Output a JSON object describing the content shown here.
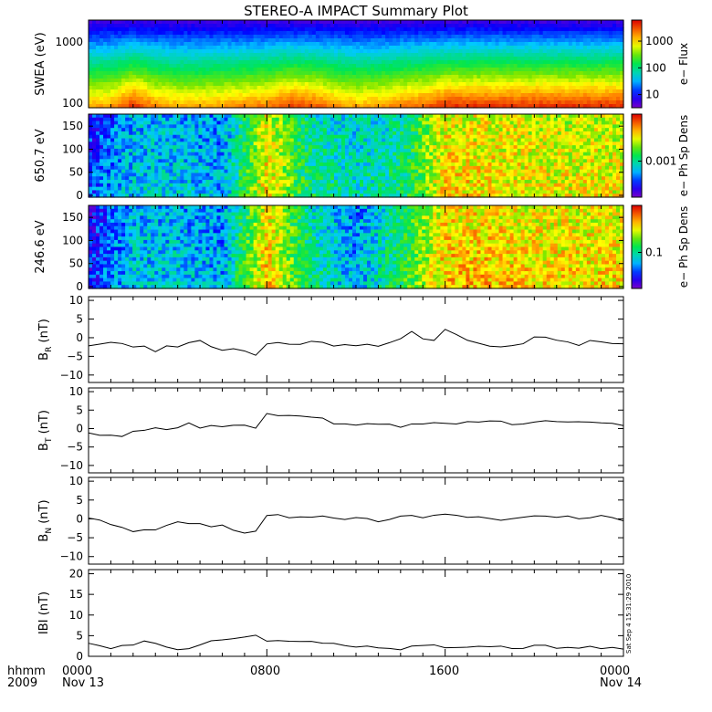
{
  "title": "STEREO-A IMPACT Summary Plot",
  "stamp": "Sat Sep  4 15:31:29 2010",
  "footer": {
    "left_top": "hhmm",
    "left_bottom": "2009",
    "ticks": [
      "0000",
      "0800",
      "1600",
      "0000"
    ],
    "start_date": "Nov 13",
    "end_date": "Nov 14"
  },
  "colors": {
    "line": "#000000",
    "background": "#ffffff"
  },
  "chart_data": [
    {
      "type": "heatmap",
      "ylabel": "SWEA (eV)",
      "yscale": "log",
      "yticks": [
        "1000",
        "100"
      ],
      "colorbar_label": "e− Flux",
      "colorbar_ticks": [
        "1000",
        "100",
        "10"
      ],
      "colorbar_scale": "log",
      "x_hours": [
        0,
        1,
        2,
        3,
        4,
        5,
        6,
        7,
        8,
        9,
        10,
        11,
        12,
        13,
        14,
        15,
        16,
        17,
        18,
        19,
        20,
        21,
        22,
        23,
        24
      ],
      "rows_low_to_high_energy": [
        "~100 eV",
        "~300 eV",
        "~1000 eV",
        "~2000 eV"
      ],
      "flux_level_profile": [
        0.72,
        0.74,
        0.86,
        0.76,
        0.72,
        0.72,
        0.74,
        0.76,
        0.78,
        0.84,
        0.82,
        0.76,
        0.72,
        0.74,
        0.78,
        0.8,
        0.86,
        0.86,
        0.86,
        0.86,
        0.86,
        0.86,
        0.86,
        0.86,
        0.86
      ]
    },
    {
      "type": "heatmap",
      "ylabel": "650.7 eV",
      "ylim": [
        0,
        180
      ],
      "yticks": [
        "150",
        "100",
        "50",
        "0"
      ],
      "colorbar_label": "e− Ph Sp Dens",
      "colorbar_ticks": [
        "0.001"
      ],
      "colorbar_scale": "log",
      "x_hours": [
        0,
        2,
        4,
        6,
        8,
        10,
        12,
        14,
        16,
        18,
        20,
        22,
        24
      ],
      "level_profile": [
        0.3,
        0.45,
        0.45,
        0.4,
        0.85,
        0.55,
        0.5,
        0.55,
        0.85,
        0.85,
        0.82,
        0.82,
        0.82
      ]
    },
    {
      "type": "heatmap",
      "ylabel": "246.6 eV",
      "ylim": [
        0,
        180
      ],
      "yticks": [
        "150",
        "100",
        "50",
        "0"
      ],
      "colorbar_label": "e− Ph Sp Dens",
      "colorbar_ticks": [
        "0.1"
      ],
      "colorbar_scale": "log",
      "x_hours": [
        0,
        2,
        4,
        6,
        8,
        10,
        12,
        14,
        16,
        18,
        20,
        22,
        24
      ],
      "level_profile": [
        0.25,
        0.45,
        0.45,
        0.4,
        0.88,
        0.55,
        0.4,
        0.6,
        0.88,
        0.88,
        0.85,
        0.85,
        0.85
      ]
    },
    {
      "type": "line",
      "ylabel": "B_R (nT)",
      "ylabel_main": "B",
      "ylabel_sub": "R",
      "ylabel_unit": "(nT)",
      "ylim": [
        -12,
        11
      ],
      "yticks": [
        "10",
        "5",
        "0",
        "−5",
        "−10"
      ],
      "ytick_values": [
        10,
        5,
        0,
        -5,
        -10
      ],
      "x": [
        0,
        0.5,
        1,
        1.5,
        2,
        2.5,
        3,
        3.5,
        4,
        4.5,
        5,
        5.5,
        6,
        6.5,
        7,
        7.5,
        8,
        8.5,
        9,
        9.5,
        10,
        10.5,
        11,
        11.5,
        12,
        12.5,
        13,
        13.5,
        14,
        14.5,
        15,
        15.5,
        16,
        16.5,
        17,
        17.5,
        18,
        18.5,
        19,
        19.5,
        20,
        20.5,
        21,
        21.5,
        22,
        22.5,
        23,
        23.5,
        24
      ],
      "y": [
        -2,
        -1.5,
        -1.2,
        -1.5,
        -2.5,
        -2,
        -3.5,
        -2,
        -2.5,
        -1.5,
        -1,
        -2.5,
        -3.5,
        -3,
        -3.5,
        -4.5,
        -1.5,
        -1.5,
        -2,
        -1.5,
        -1,
        -1.5,
        -2.5,
        -2,
        -2,
        -1.5,
        -2.5,
        -1.5,
        -0.5,
        1.5,
        -0.5,
        -1,
        2,
        1,
        -0.5,
        -1.5,
        -2.5,
        -2.5,
        -2,
        -1.5,
        0,
        0.3,
        -0.5,
        -1,
        -2,
        -0.5,
        -1,
        -1.5,
        -1.5
      ]
    },
    {
      "type": "line",
      "ylabel": "B_T (nT)",
      "ylabel_main": "B",
      "ylabel_sub": "T",
      "ylabel_unit": "(nT)",
      "ylim": [
        -12,
        11
      ],
      "yticks": [
        "10",
        "5",
        "0",
        "−5",
        "−10"
      ],
      "ytick_values": [
        10,
        5,
        0,
        -5,
        -10
      ],
      "x": [
        0,
        0.5,
        1,
        1.5,
        2,
        2.5,
        3,
        3.5,
        4,
        4.5,
        5,
        5.5,
        6,
        6.5,
        7,
        7.5,
        8,
        8.5,
        9,
        9.5,
        10,
        10.5,
        11,
        11.5,
        12,
        12.5,
        13,
        13.5,
        14,
        14.5,
        15,
        15.5,
        16,
        16.5,
        17,
        17.5,
        18,
        18.5,
        19,
        19.5,
        20,
        20.5,
        21,
        21.5,
        22,
        22.5,
        23,
        23.5,
        24
      ],
      "y": [
        -1,
        -2,
        -1.5,
        -2,
        -1,
        -0.5,
        0,
        -0.5,
        0.5,
        1.5,
        0,
        1,
        0.5,
        0.8,
        1,
        0,
        3.8,
        3.5,
        3.5,
        3.2,
        3,
        2.8,
        1.5,
        1.5,
        1,
        1.5,
        1,
        1.5,
        0.5,
        1.5,
        1,
        1.5,
        1.5,
        1.5,
        2,
        1.8,
        2,
        2,
        1,
        1.5,
        2,
        2.3,
        2,
        1.8,
        2,
        1.5,
        1.8,
        1.5,
        1
      ]
    },
    {
      "type": "line",
      "ylabel": "B_N (nT)",
      "ylabel_main": "B",
      "ylabel_sub": "N",
      "ylabel_unit": "(nT)",
      "ylim": [
        -12,
        11
      ],
      "yticks": [
        "10",
        "5",
        "0",
        "−5",
        "−10"
      ],
      "ytick_values": [
        10,
        5,
        0,
        -5,
        -10
      ],
      "x": [
        0,
        0.5,
        1,
        1.5,
        2,
        2.5,
        3,
        3.5,
        4,
        4.5,
        5,
        5.5,
        6,
        6.5,
        7,
        7.5,
        8,
        8.5,
        9,
        9.5,
        10,
        10.5,
        11,
        11.5,
        12,
        12.5,
        13,
        13.5,
        14,
        14.5,
        15,
        15.5,
        16,
        16.5,
        17,
        17.5,
        18,
        18.5,
        19,
        19.5,
        20,
        20.5,
        21,
        21.5,
        22,
        22.5,
        23,
        23.5,
        24
      ],
      "y": [
        0,
        -0.5,
        -1.5,
        -2,
        -3.5,
        -3,
        -3,
        -2,
        -0.5,
        -1,
        -1.5,
        -2,
        -1.5,
        -3,
        -3.5,
        -3,
        1,
        1,
        0.5,
        0.5,
        0.5,
        0.5,
        0.5,
        0,
        0.5,
        0,
        -0.5,
        0,
        0.5,
        1,
        0.5,
        1,
        1.5,
        1,
        0.5,
        0.5,
        0,
        -0.5,
        0,
        0.5,
        1,
        1,
        0.5,
        0.8,
        0,
        0.5,
        0.8,
        0.5,
        -0.5
      ]
    },
    {
      "type": "line",
      "ylabel": "|B| (nT)",
      "ylabel_main": "IBI",
      "ylabel_sub": "",
      "ylabel_unit": "(nT)",
      "ylim": [
        0,
        21
      ],
      "yticks": [
        "20",
        "15",
        "10",
        "5",
        "0"
      ],
      "ytick_values": [
        20,
        15,
        10,
        5,
        0
      ],
      "x": [
        0,
        0.5,
        1,
        1.5,
        2,
        2.5,
        3,
        3.5,
        4,
        4.5,
        5,
        5.5,
        6,
        6.5,
        7,
        7.5,
        8,
        8.5,
        9,
        9.5,
        10,
        10.5,
        11,
        11.5,
        12,
        12.5,
        13,
        13.5,
        14,
        14.5,
        15,
        15.5,
        16,
        16.5,
        17,
        17.5,
        18,
        18.5,
        19,
        19.5,
        20,
        20.5,
        21,
        21.5,
        22,
        22.5,
        23,
        23.5,
        24
      ],
      "y": [
        3,
        2.5,
        2,
        2.5,
        3,
        4,
        3,
        2.5,
        1.5,
        2,
        2.5,
        3.5,
        4,
        4.5,
        4.5,
        5,
        3.5,
        4,
        3.5,
        3.5,
        3.5,
        3,
        3,
        2.5,
        2.3,
        2.2,
        2,
        2,
        1.8,
        2.2,
        2.5,
        2.5,
        2.2,
        2.2,
        2,
        2.3,
        2.5,
        2.3,
        2,
        2,
        2.5,
        2.5,
        2.2,
        2.3,
        2,
        2.2,
        2,
        2,
        1.8
      ]
    }
  ]
}
